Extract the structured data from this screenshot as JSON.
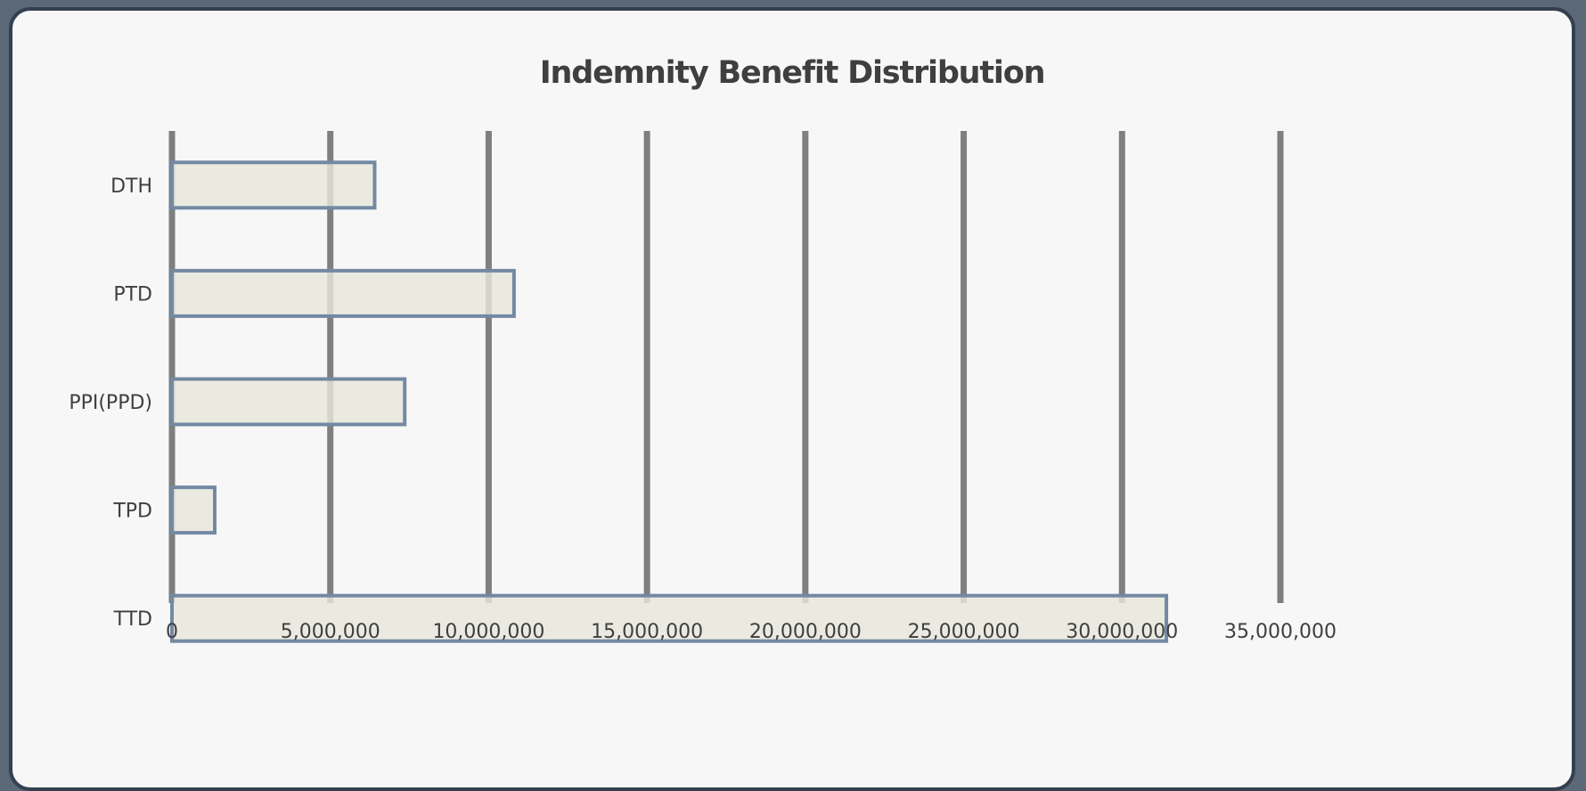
{
  "chart_data": {
    "type": "bar",
    "orientation": "horizontal",
    "title": "Indemnity Benefit Distribution",
    "xlabel": "",
    "ylabel": "",
    "categories": [
      "DTH",
      "PTD",
      "PPI(PPD)",
      "TPD",
      "TTD"
    ],
    "values": [
      6400000,
      10800000,
      7350000,
      1350000,
      31400000
    ],
    "xlim": [
      0,
      35000000
    ],
    "x_ticks": [
      0,
      5000000,
      10000000,
      15000000,
      20000000,
      25000000,
      30000000,
      35000000
    ],
    "x_tick_labels": [
      "0",
      "5,000,000",
      "10,000,000",
      "15,000,000",
      "20,000,000",
      "25,000,000",
      "30,000,000",
      "35,000,000"
    ],
    "grid": "vertical",
    "legend": "none",
    "colors": {
      "bar_fill": "#e8e6dc",
      "bar_stroke": "#7389a3",
      "gridline": "#7f7f7f",
      "text": "#3f3f3f",
      "background": "#f7f7f7",
      "frame": "#34404f"
    }
  }
}
